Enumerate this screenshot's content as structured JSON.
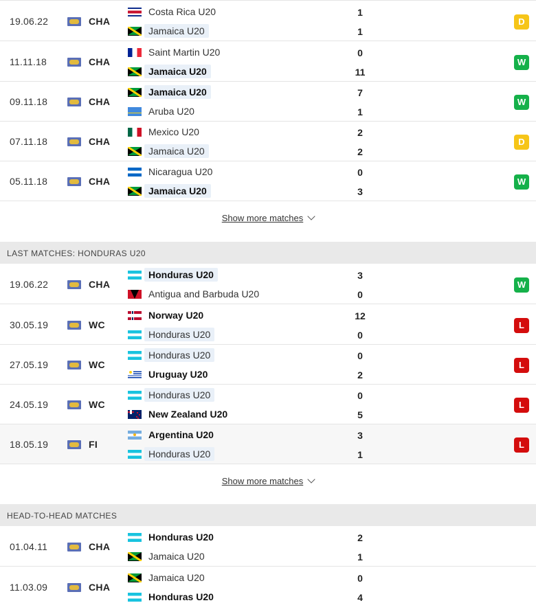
{
  "sections": {
    "jamaica_tail": {
      "matches": [
        {
          "date": "19.06.22",
          "comp": "CHA",
          "home": {
            "name": "Costa Rica U20",
            "flag": "costa-rica-flag",
            "score": "1",
            "bold": false,
            "hl": false
          },
          "away": {
            "name": "Jamaica U20",
            "flag": "jamaica-flag",
            "score": "1",
            "bold": false,
            "hl": true
          },
          "result": "D"
        },
        {
          "date": "11.11.18",
          "comp": "CHA",
          "home": {
            "name": "Saint Martin U20",
            "flag": "france-flag",
            "score": "0",
            "bold": false,
            "hl": false
          },
          "away": {
            "name": "Jamaica U20",
            "flag": "jamaica-flag",
            "score": "11",
            "bold": true,
            "hl": true
          },
          "result": "W"
        },
        {
          "date": "09.11.18",
          "comp": "CHA",
          "home": {
            "name": "Jamaica U20",
            "flag": "jamaica-flag",
            "score": "7",
            "bold": true,
            "hl": true
          },
          "away": {
            "name": "Aruba U20",
            "flag": "aruba-flag",
            "score": "1",
            "bold": false,
            "hl": false
          },
          "result": "W"
        },
        {
          "date": "07.11.18",
          "comp": "CHA",
          "home": {
            "name": "Mexico U20",
            "flag": "mexico-flag",
            "score": "2",
            "bold": false,
            "hl": false
          },
          "away": {
            "name": "Jamaica U20",
            "flag": "jamaica-flag",
            "score": "2",
            "bold": false,
            "hl": true
          },
          "result": "D"
        },
        {
          "date": "05.11.18",
          "comp": "CHA",
          "home": {
            "name": "Nicaragua U20",
            "flag": "nicaragua-flag",
            "score": "0",
            "bold": false,
            "hl": false
          },
          "away": {
            "name": "Jamaica U20",
            "flag": "jamaica-flag",
            "score": "3",
            "bold": true,
            "hl": true
          },
          "result": "W"
        }
      ],
      "show_more": "Show more matches"
    },
    "honduras": {
      "title": "LAST MATCHES: HONDURAS U20",
      "matches": [
        {
          "date": "19.06.22",
          "comp": "CHA",
          "home": {
            "name": "Honduras U20",
            "flag": "honduras-flag",
            "score": "3",
            "bold": true,
            "hl": true
          },
          "away": {
            "name": "Antigua and Barbuda U20",
            "flag": "antigua-flag",
            "score": "0",
            "bold": false,
            "hl": false
          },
          "result": "W"
        },
        {
          "date": "30.05.19",
          "comp": "WC",
          "home": {
            "name": "Norway U20",
            "flag": "norway-flag",
            "score": "12",
            "bold": true,
            "hl": false
          },
          "away": {
            "name": "Honduras U20",
            "flag": "honduras-flag",
            "score": "0",
            "bold": false,
            "hl": true
          },
          "result": "L"
        },
        {
          "date": "27.05.19",
          "comp": "WC",
          "home": {
            "name": "Honduras U20",
            "flag": "honduras-flag",
            "score": "0",
            "bold": false,
            "hl": true
          },
          "away": {
            "name": "Uruguay U20",
            "flag": "uruguay-flag",
            "score": "2",
            "bold": true,
            "hl": false
          },
          "result": "L"
        },
        {
          "date": "24.05.19",
          "comp": "WC",
          "home": {
            "name": "Honduras U20",
            "flag": "honduras-flag",
            "score": "0",
            "bold": false,
            "hl": true
          },
          "away": {
            "name": "New Zealand U20",
            "flag": "new-zealand-flag",
            "score": "5",
            "bold": true,
            "hl": false
          },
          "result": "L"
        },
        {
          "date": "18.05.19",
          "comp": "FI",
          "home": {
            "name": "Argentina U20",
            "flag": "argentina-flag",
            "score": "3",
            "bold": true,
            "hl": false
          },
          "away": {
            "name": "Honduras U20",
            "flag": "honduras-flag",
            "score": "1",
            "bold": false,
            "hl": true
          },
          "result": "L"
        }
      ],
      "show_more": "Show more matches"
    },
    "h2h": {
      "title": "HEAD-TO-HEAD MATCHES",
      "matches": [
        {
          "date": "01.04.11",
          "comp": "CHA",
          "home": {
            "name": "Honduras U20",
            "flag": "honduras-flag",
            "score": "2",
            "bold": true,
            "hl": false
          },
          "away": {
            "name": "Jamaica U20",
            "flag": "jamaica-flag",
            "score": "1",
            "bold": false,
            "hl": false
          },
          "result": ""
        },
        {
          "date": "11.03.09",
          "comp": "CHA",
          "home": {
            "name": "Jamaica U20",
            "flag": "jamaica-flag",
            "score": "0",
            "bold": false,
            "hl": false
          },
          "away": {
            "name": "Honduras U20",
            "flag": "honduras-flag",
            "score": "4",
            "bold": true,
            "hl": false
          },
          "result": ""
        }
      ]
    }
  },
  "colors": {
    "win": "#15b14a",
    "draw": "#f6c518",
    "loss": "#d40d0d",
    "section_bg": "#e9e9e9"
  }
}
